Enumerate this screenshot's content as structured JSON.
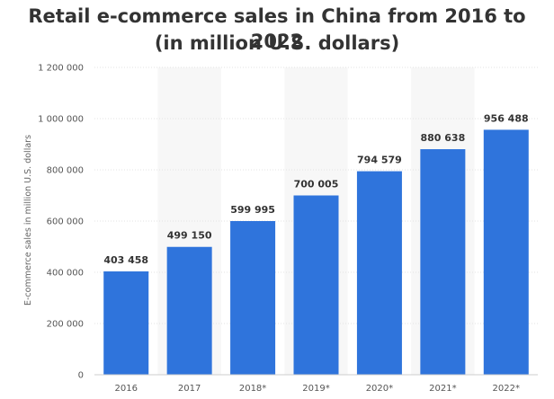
{
  "chart_data": {
    "type": "bar",
    "title": "Retail e-commerce sales in China from 2016 to 2022",
    "subtitle": "(in million U.S. dollars)",
    "xlabel": "",
    "ylabel": "E-commerce sales in million U.S. dollars",
    "categories": [
      "2016",
      "2017",
      "2018*",
      "2019*",
      "2020*",
      "2021*",
      "2022*"
    ],
    "values": [
      403458,
      499150,
      599995,
      700005,
      794579,
      880638,
      956488
    ],
    "value_labels": [
      "403 458",
      "499 150",
      "599 995",
      "700 005",
      "794 579",
      "880 638",
      "956 488"
    ],
    "ylim": [
      0,
      1200000
    ],
    "yticks": [
      0,
      200000,
      400000,
      600000,
      800000,
      1000000,
      1200000
    ],
    "ytick_labels": [
      "0",
      "200 000",
      "400 000",
      "600 000",
      "800 000",
      "1 000 000",
      "1 200 000"
    ],
    "grid": true,
    "bar_color": "#2f74dc"
  }
}
